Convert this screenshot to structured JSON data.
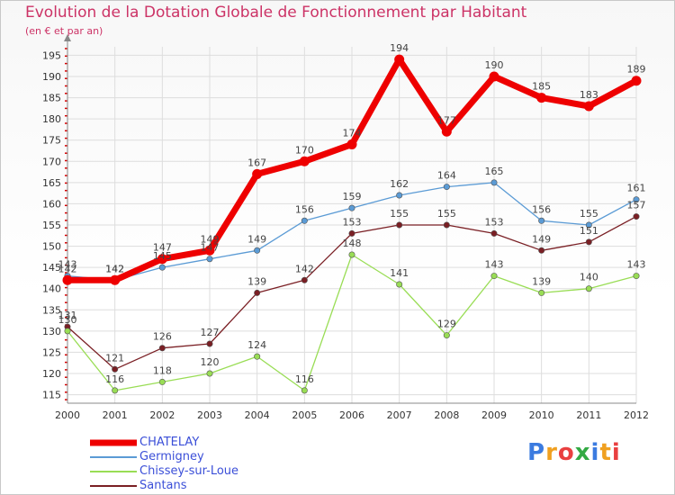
{
  "header": {
    "title": "Evolution de la Dotation Globale de Fonctionnement par Habitant",
    "subtitle": "(en € et par an)"
  },
  "logo": {
    "text": "Proxiti"
  },
  "colors": {
    "title": "#cc3366",
    "grid": "#dddddd",
    "axis_tick_red": "#d40000",
    "legend_text": "#3b4fd8"
  },
  "chart_data": {
    "type": "line",
    "title": "Evolution de la Dotation Globale de Fonctionnement par Habitant",
    "subtitle": "(en € et par an)",
    "xlabel": "",
    "ylabel": "",
    "x": [
      "2000",
      "2001",
      "2002",
      "2003",
      "2004",
      "2005",
      "2006",
      "2007",
      "2008",
      "2009",
      "2010",
      "2011",
      "2012"
    ],
    "ylim": [
      113,
      197
    ],
    "yticks": [
      115,
      120,
      125,
      130,
      135,
      140,
      145,
      150,
      155,
      160,
      165,
      170,
      175,
      180,
      185,
      190,
      195
    ],
    "grid": true,
    "legend_position": "bottom-left",
    "series": [
      {
        "name": "CHATELAY",
        "color": "#ee0000",
        "stroke_width": 7,
        "marker": 5.5,
        "values": [
          142,
          142,
          147,
          149,
          167,
          170,
          174,
          194,
          177,
          190,
          185,
          183,
          189
        ]
      },
      {
        "name": "Germigney",
        "color": "#5b9bd5",
        "stroke_width": 1.3,
        "marker": 3.2,
        "values": [
          143,
          142,
          145,
          147,
          149,
          156,
          159,
          162,
          164,
          165,
          156,
          155,
          161
        ]
      },
      {
        "name": "Chissey-sur-Loue",
        "color": "#99dd55",
        "stroke_width": 1.3,
        "marker": 3.2,
        "values": [
          130,
          116,
          118,
          120,
          124,
          116,
          148,
          141,
          129,
          143,
          139,
          140,
          143
        ]
      },
      {
        "name": "Santans",
        "color": "#7a1f24",
        "stroke_width": 1.3,
        "marker": 3.2,
        "values": [
          131,
          121,
          126,
          127,
          139,
          142,
          153,
          155,
          155,
          153,
          149,
          151,
          157
        ]
      }
    ]
  }
}
